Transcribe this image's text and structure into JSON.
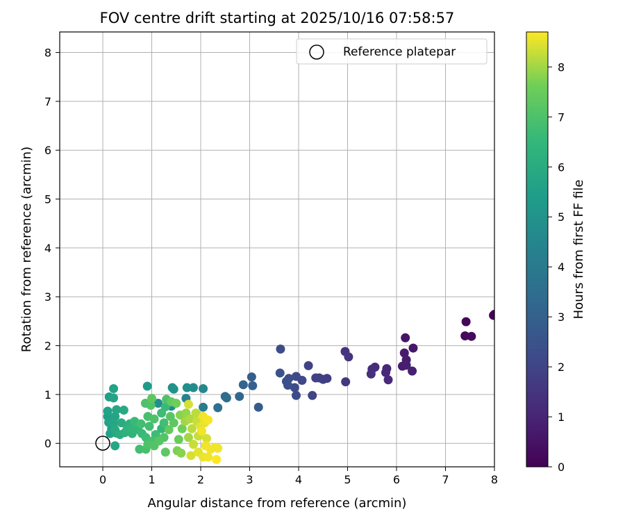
{
  "chart_data": {
    "type": "scatter",
    "title": "FOV centre drift starting at 2025/10/16 07:58:57",
    "xlabel": "Angular distance from reference (arcmin)",
    "ylabel": "Rotation from reference (arcmin)",
    "xlim": [
      -0.88,
      8.0
    ],
    "ylim": [
      -0.48,
      8.42
    ],
    "xticks": [
      "0",
      "1",
      "2",
      "3",
      "4",
      "5",
      "6",
      "7",
      "8"
    ],
    "yticks": [
      "0",
      "1",
      "2",
      "3",
      "4",
      "5",
      "6",
      "7",
      "8"
    ],
    "grid": true,
    "legend": {
      "position": "top-right",
      "entries": [
        "Reference platepar"
      ]
    },
    "reference_point": {
      "x": 0,
      "y": 0,
      "label": "Reference platepar"
    },
    "colorbar": {
      "label": "Hours from first FF file",
      "colormap": "viridis",
      "range": [
        0,
        8.7
      ],
      "ticks": [
        "0",
        "1",
        "2",
        "3",
        "4",
        "5",
        "6",
        "7",
        "8"
      ]
    },
    "points": [
      {
        "x": 8.0,
        "y": 2.64,
        "c": 0.0
      },
      {
        "x": 7.98,
        "y": 2.62,
        "c": 0.05
      },
      {
        "x": 7.42,
        "y": 2.49,
        "c": 0.15
      },
      {
        "x": 7.4,
        "y": 2.2,
        "c": 0.25
      },
      {
        "x": 7.53,
        "y": 2.19,
        "c": 0.3
      },
      {
        "x": 6.18,
        "y": 2.16,
        "c": 0.55
      },
      {
        "x": 6.34,
        "y": 1.95,
        "c": 0.65
      },
      {
        "x": 6.16,
        "y": 1.85,
        "c": 0.7
      },
      {
        "x": 6.2,
        "y": 1.71,
        "c": 0.75
      },
      {
        "x": 6.12,
        "y": 1.58,
        "c": 0.8
      },
      {
        "x": 6.2,
        "y": 1.6,
        "c": 0.85
      },
      {
        "x": 6.32,
        "y": 1.48,
        "c": 0.9
      },
      {
        "x": 5.8,
        "y": 1.53,
        "c": 1.05
      },
      {
        "x": 5.78,
        "y": 1.45,
        "c": 1.1
      },
      {
        "x": 5.83,
        "y": 1.3,
        "c": 1.15
      },
      {
        "x": 5.56,
        "y": 1.56,
        "c": 1.2
      },
      {
        "x": 5.5,
        "y": 1.52,
        "c": 1.25
      },
      {
        "x": 5.48,
        "y": 1.42,
        "c": 1.3
      },
      {
        "x": 4.95,
        "y": 1.88,
        "c": 1.45
      },
      {
        "x": 5.02,
        "y": 1.77,
        "c": 1.5
      },
      {
        "x": 4.96,
        "y": 1.26,
        "c": 1.6
      },
      {
        "x": 4.58,
        "y": 1.33,
        "c": 1.75
      },
      {
        "x": 4.5,
        "y": 1.31,
        "c": 1.8
      },
      {
        "x": 4.42,
        "y": 1.34,
        "c": 1.85
      },
      {
        "x": 4.35,
        "y": 1.34,
        "c": 1.9
      },
      {
        "x": 4.2,
        "y": 1.59,
        "c": 1.95
      },
      {
        "x": 4.28,
        "y": 0.98,
        "c": 2.0
      },
      {
        "x": 4.07,
        "y": 1.29,
        "c": 2.1
      },
      {
        "x": 3.95,
        "y": 1.37,
        "c": 2.15
      },
      {
        "x": 3.92,
        "y": 1.14,
        "c": 2.2
      },
      {
        "x": 3.95,
        "y": 0.98,
        "c": 2.25
      },
      {
        "x": 3.8,
        "y": 1.33,
        "c": 2.3
      },
      {
        "x": 3.75,
        "y": 1.27,
        "c": 2.35
      },
      {
        "x": 3.78,
        "y": 1.19,
        "c": 2.4
      },
      {
        "x": 3.63,
        "y": 1.93,
        "c": 2.25
      },
      {
        "x": 3.62,
        "y": 1.44,
        "c": 2.5
      },
      {
        "x": 3.18,
        "y": 0.74,
        "c": 2.8
      },
      {
        "x": 3.04,
        "y": 1.36,
        "c": 2.9
      },
      {
        "x": 3.06,
        "y": 1.18,
        "c": 3.0
      },
      {
        "x": 2.87,
        "y": 1.2,
        "c": 3.1
      },
      {
        "x": 2.79,
        "y": 0.96,
        "c": 3.2
      },
      {
        "x": 2.5,
        "y": 0.96,
        "c": 3.4
      },
      {
        "x": 2.53,
        "y": 0.93,
        "c": 3.5
      },
      {
        "x": 2.35,
        "y": 0.73,
        "c": 3.6
      },
      {
        "x": 2.05,
        "y": 0.74,
        "c": 4.1
      },
      {
        "x": 1.7,
        "y": 0.92,
        "c": 4.3
      },
      {
        "x": 2.05,
        "y": 1.12,
        "c": 4.6
      },
      {
        "x": 1.85,
        "y": 1.14,
        "c": 4.7
      },
      {
        "x": 1.72,
        "y": 1.14,
        "c": 4.8
      },
      {
        "x": 1.42,
        "y": 1.14,
        "c": 4.9
      },
      {
        "x": 1.45,
        "y": 1.11,
        "c": 5.0
      },
      {
        "x": 1.13,
        "y": 0.82,
        "c": 4.8
      },
      {
        "x": 1.4,
        "y": 0.76,
        "c": 4.7
      },
      {
        "x": 0.91,
        "y": 1.17,
        "c": 5.3
      },
      {
        "x": 0.22,
        "y": 1.12,
        "c": 5.6
      },
      {
        "x": 0.13,
        "y": 0.95,
        "c": 5.5
      },
      {
        "x": 0.22,
        "y": 0.93,
        "c": 5.7
      },
      {
        "x": 0.1,
        "y": 0.66,
        "c": 5.6
      },
      {
        "x": 0.28,
        "y": 0.69,
        "c": 5.8
      },
      {
        "x": 0.43,
        "y": 0.68,
        "c": 5.9
      },
      {
        "x": 0.1,
        "y": 0.55,
        "c": 5.5
      },
      {
        "x": 0.25,
        "y": 0.55,
        "c": 5.7
      },
      {
        "x": 0.12,
        "y": 0.43,
        "c": 5.6
      },
      {
        "x": 0.22,
        "y": 0.41,
        "c": 5.8
      },
      {
        "x": 0.38,
        "y": 0.42,
        "c": 6.0
      },
      {
        "x": 0.18,
        "y": 0.3,
        "c": 5.5
      },
      {
        "x": 0.25,
        "y": 0.28,
        "c": 5.9
      },
      {
        "x": 0.15,
        "y": 0.2,
        "c": 5.6
      },
      {
        "x": 0.35,
        "y": 0.18,
        "c": 6.1
      },
      {
        "x": 0.28,
        "y": 0.21,
        "c": 5.9
      },
      {
        "x": 0.45,
        "y": 0.22,
        "c": 6.2
      },
      {
        "x": 0.6,
        "y": 0.2,
        "c": 6.3
      },
      {
        "x": 0.25,
        "y": -0.05,
        "c": 5.8
      },
      {
        "x": 0.5,
        "y": 0.3,
        "c": 6.3
      },
      {
        "x": 0.65,
        "y": 0.45,
        "c": 6.6
      },
      {
        "x": 0.78,
        "y": 0.4,
        "c": 6.8
      },
      {
        "x": 0.72,
        "y": 0.28,
        "c": 6.5
      },
      {
        "x": 0.8,
        "y": 0.2,
        "c": 6.6
      },
      {
        "x": 0.87,
        "y": 0.82,
        "c": 7.0
      },
      {
        "x": 1.0,
        "y": 0.92,
        "c": 7.3
      },
      {
        "x": 0.98,
        "y": 0.78,
        "c": 7.1
      },
      {
        "x": 0.92,
        "y": 0.55,
        "c": 6.9
      },
      {
        "x": 1.05,
        "y": 0.5,
        "c": 7.0
      },
      {
        "x": 0.95,
        "y": 0.35,
        "c": 6.8
      },
      {
        "x": 0.88,
        "y": 0.12,
        "c": 6.7
      },
      {
        "x": 1.02,
        "y": 0.05,
        "c": 6.9
      },
      {
        "x": 0.92,
        "y": -0.02,
        "c": 7.0
      },
      {
        "x": 1.05,
        "y": -0.05,
        "c": 7.1
      },
      {
        "x": 0.88,
        "y": -0.12,
        "c": 6.9
      },
      {
        "x": 0.75,
        "y": -0.12,
        "c": 6.8
      },
      {
        "x": 1.15,
        "y": 0.05,
        "c": 7.2
      },
      {
        "x": 1.25,
        "y": 0.42,
        "c": 6.8
      },
      {
        "x": 1.2,
        "y": 0.62,
        "c": 6.7
      },
      {
        "x": 1.28,
        "y": 0.75,
        "c": 6.6
      },
      {
        "x": 1.3,
        "y": 0.9,
        "c": 7.0
      },
      {
        "x": 1.4,
        "y": 0.85,
        "c": 7.4
      },
      {
        "x": 1.5,
        "y": 0.82,
        "c": 7.6
      },
      {
        "x": 1.38,
        "y": 0.55,
        "c": 7.2
      },
      {
        "x": 1.45,
        "y": 0.42,
        "c": 7.3
      },
      {
        "x": 1.35,
        "y": 0.28,
        "c": 7.4
      },
      {
        "x": 1.25,
        "y": 0.12,
        "c": 7.1
      },
      {
        "x": 1.28,
        "y": -0.18,
        "c": 7.3
      },
      {
        "x": 1.52,
        "y": -0.15,
        "c": 7.7
      },
      {
        "x": 1.6,
        "y": -0.2,
        "c": 7.8
      },
      {
        "x": 1.55,
        "y": 0.08,
        "c": 7.5
      },
      {
        "x": 1.62,
        "y": 0.3,
        "c": 7.6
      },
      {
        "x": 1.58,
        "y": 0.58,
        "c": 7.8
      },
      {
        "x": 1.7,
        "y": 0.62,
        "c": 7.9
      },
      {
        "x": 1.68,
        "y": 0.45,
        "c": 8.0
      },
      {
        "x": 1.75,
        "y": 0.8,
        "c": 8.4
      },
      {
        "x": 1.78,
        "y": 0.5,
        "c": 8.1
      },
      {
        "x": 1.82,
        "y": 0.3,
        "c": 8.2
      },
      {
        "x": 1.75,
        "y": 0.12,
        "c": 8.0
      },
      {
        "x": 1.85,
        "y": -0.02,
        "c": 8.3
      },
      {
        "x": 1.8,
        "y": -0.25,
        "c": 8.4
      },
      {
        "x": 1.95,
        "y": -0.18,
        "c": 8.5
      },
      {
        "x": 1.95,
        "y": 0.15,
        "c": 8.3
      },
      {
        "x": 2.0,
        "y": 0.35,
        "c": 8.5
      },
      {
        "x": 2.05,
        "y": 0.55,
        "c": 8.6
      },
      {
        "x": 2.08,
        "y": 0.42,
        "c": 8.55
      },
      {
        "x": 2.02,
        "y": 0.25,
        "c": 8.6
      },
      {
        "x": 2.12,
        "y": 0.1,
        "c": 8.4
      },
      {
        "x": 2.1,
        "y": -0.05,
        "c": 8.6
      },
      {
        "x": 2.05,
        "y": -0.28,
        "c": 8.55
      },
      {
        "x": 2.15,
        "y": -0.28,
        "c": 8.6
      },
      {
        "x": 2.2,
        "y": -0.12,
        "c": 8.6
      },
      {
        "x": 2.3,
        "y": -0.08,
        "c": 8.6
      },
      {
        "x": 2.35,
        "y": -0.1,
        "c": 8.6
      },
      {
        "x": 2.32,
        "y": -0.33,
        "c": 8.7
      },
      {
        "x": 2.15,
        "y": 0.48,
        "c": 8.65
      },
      {
        "x": 1.9,
        "y": 0.62,
        "c": 8.2
      },
      {
        "x": 1.92,
        "y": 0.45,
        "c": 8.3
      },
      {
        "x": 1.2,
        "y": 0.3,
        "c": 6.5
      },
      {
        "x": 1.08,
        "y": 0.18,
        "c": 6.7
      },
      {
        "x": 0.6,
        "y": 0.3,
        "c": 6.4
      },
      {
        "x": 0.55,
        "y": 0.4,
        "c": 6.2
      }
    ]
  }
}
